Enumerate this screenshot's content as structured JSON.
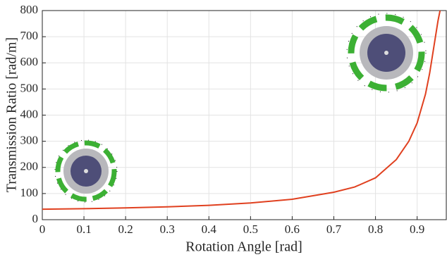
{
  "chart_data": {
    "type": "line",
    "x_label": "Rotation Angle [rad]",
    "y_label": "Transmission Ratio [rad/m]",
    "x": [
      0,
      0.1,
      0.2,
      0.3,
      0.4,
      0.5,
      0.6,
      0.7,
      0.75,
      0.8,
      0.85,
      0.88,
      0.9,
      0.92,
      0.93,
      0.94,
      0.95,
      0.955
    ],
    "series": [
      {
        "color": "#e0401f",
        "values": [
          40,
          42,
          45,
          49,
          55,
          64,
          78,
          105,
          125,
          160,
          230,
          300,
          370,
          480,
          560,
          660,
          760,
          800
        ]
      }
    ],
    "xlim": [
      0,
      0.97
    ],
    "ylim": [
      0,
      800
    ],
    "xticks": [
      0,
      0.1,
      0.2,
      0.3,
      0.4,
      0.5,
      0.6,
      0.7,
      0.8,
      0.9
    ],
    "yticks": [
      0,
      100,
      200,
      300,
      400,
      500,
      600,
      700,
      800
    ],
    "grid": true
  }
}
